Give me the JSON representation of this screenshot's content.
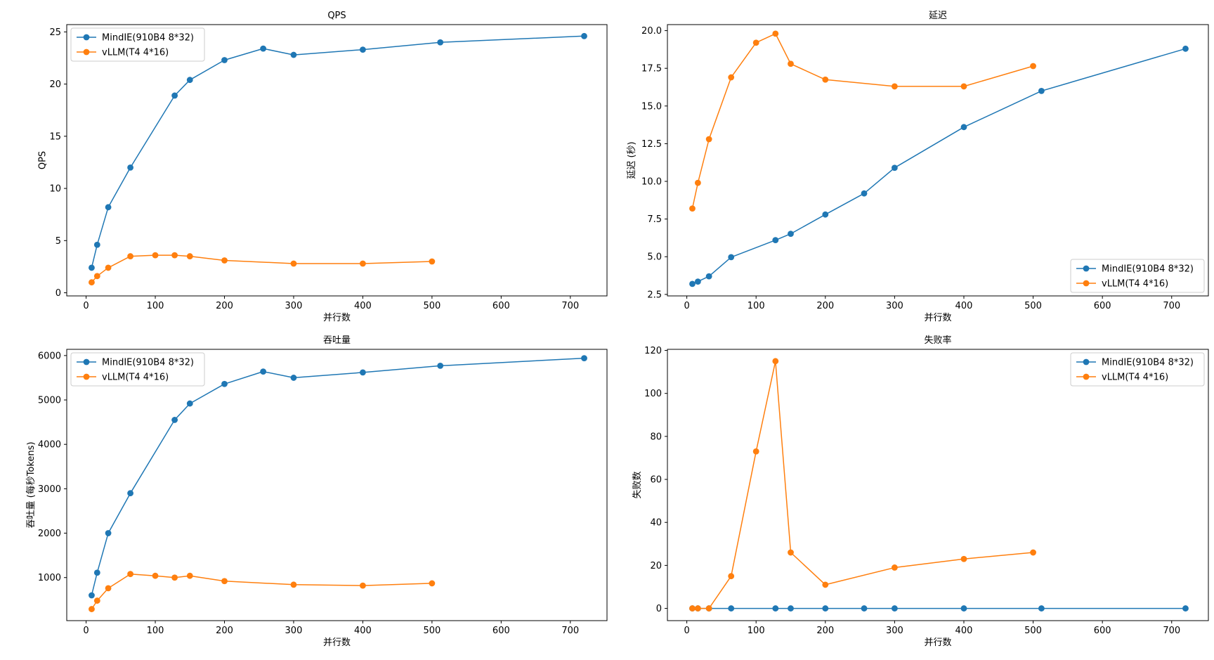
{
  "colors": {
    "series1": "#1f77b4",
    "series2": "#ff7f0e",
    "axis": "#000000",
    "legend_border": "#cccccc"
  },
  "chart_data": [
    {
      "type": "line",
      "title": "QPS",
      "xlabel": "并行数",
      "ylabel": "QPS",
      "xlim": [
        -28,
        753
      ],
      "ylim": [
        -0.3,
        25.7
      ],
      "xticks": [
        0,
        100,
        200,
        300,
        400,
        500,
        600,
        700
      ],
      "yticks": [
        0,
        5,
        10,
        15,
        20,
        25
      ],
      "ytick_labels": [
        "0",
        "5",
        "10",
        "15",
        "20",
        "25"
      ],
      "legend": "upper left",
      "grid": false,
      "series": [
        {
          "name": "MindIE(910B4 8*32)",
          "x": [
            8,
            16,
            32,
            64,
            128,
            150,
            200,
            256,
            300,
            400,
            512,
            720
          ],
          "y": [
            2.4,
            4.6,
            8.2,
            12.0,
            18.9,
            20.4,
            22.3,
            23.4,
            22.8,
            23.3,
            24.0,
            24.6
          ]
        },
        {
          "name": "vLLM(T4 4*16)",
          "x": [
            8,
            16,
            32,
            64,
            100,
            128,
            150,
            200,
            300,
            400,
            500
          ],
          "y": [
            1.0,
            1.6,
            2.4,
            3.5,
            3.6,
            3.6,
            3.5,
            3.1,
            2.8,
            2.8,
            3.0
          ]
        }
      ]
    },
    {
      "type": "line",
      "title": "延迟",
      "xlabel": "并行数",
      "ylabel": "延迟 (秒)",
      "xlim": [
        -28,
        753
      ],
      "ylim": [
        2.4,
        20.4
      ],
      "xticks": [
        0,
        100,
        200,
        300,
        400,
        500,
        600,
        700
      ],
      "yticks": [
        2.5,
        5.0,
        7.5,
        10.0,
        12.5,
        15.0,
        17.5,
        20.0
      ],
      "ytick_labels": [
        "2.5",
        "5.0",
        "7.5",
        "10.0",
        "12.5",
        "15.0",
        "17.5",
        "20.0"
      ],
      "legend": "lower right",
      "grid": false,
      "series": [
        {
          "name": "MindIE(910B4 8*32)",
          "x": [
            8,
            16,
            32,
            64,
            128,
            150,
            200,
            256,
            300,
            400,
            512,
            720
          ],
          "y": [
            3.2,
            3.35,
            3.7,
            4.97,
            6.1,
            6.52,
            7.8,
            9.2,
            10.9,
            13.6,
            16.0,
            18.8
          ]
        },
        {
          "name": "vLLM(T4 4*16)",
          "x": [
            8,
            16,
            32,
            64,
            100,
            128,
            150,
            200,
            300,
            400,
            500
          ],
          "y": [
            8.2,
            9.9,
            12.8,
            16.9,
            19.2,
            19.8,
            17.8,
            16.75,
            16.3,
            16.3,
            17.65
          ]
        }
      ]
    },
    {
      "type": "line",
      "title": "吞吐量",
      "xlabel": "并行数",
      "ylabel": "吞吐量 (每秒Tokens)",
      "xlim": [
        -28,
        753
      ],
      "ylim": [
        30,
        6140
      ],
      "xticks": [
        0,
        100,
        200,
        300,
        400,
        500,
        600,
        700
      ],
      "yticks": [
        1000,
        2000,
        3000,
        4000,
        5000,
        6000
      ],
      "ytick_labels": [
        "1000",
        "2000",
        "3000",
        "4000",
        "5000",
        "6000"
      ],
      "legend": "upper left",
      "grid": false,
      "series": [
        {
          "name": "MindIE(910B4 8*32)",
          "x": [
            8,
            16,
            32,
            64,
            128,
            150,
            200,
            256,
            300,
            400,
            512,
            720
          ],
          "y": [
            600,
            1110,
            2000,
            2900,
            4550,
            4920,
            5360,
            5640,
            5500,
            5620,
            5770,
            5940
          ]
        },
        {
          "name": "vLLM(T4 4*16)",
          "x": [
            8,
            16,
            32,
            64,
            100,
            128,
            150,
            200,
            300,
            400,
            500
          ],
          "y": [
            290,
            480,
            760,
            1080,
            1040,
            1000,
            1040,
            920,
            840,
            820,
            870
          ]
        }
      ]
    },
    {
      "type": "line",
      "title": "失败率",
      "xlabel": "并行数",
      "ylabel": "失败数",
      "xlim": [
        -28,
        753
      ],
      "ylim": [
        -5.7,
        120.5
      ],
      "xticks": [
        0,
        100,
        200,
        300,
        400,
        500,
        600,
        700
      ],
      "yticks": [
        0,
        20,
        40,
        60,
        80,
        100,
        120
      ],
      "ytick_labels": [
        "0",
        "20",
        "40",
        "60",
        "80",
        "100",
        "120"
      ],
      "legend": "upper right",
      "grid": false,
      "series": [
        {
          "name": "MindIE(910B4 8*32)",
          "x": [
            8,
            16,
            32,
            64,
            128,
            150,
            200,
            256,
            300,
            400,
            512,
            720
          ],
          "y": [
            0,
            0,
            0,
            0,
            0,
            0,
            0,
            0,
            0,
            0,
            0,
            0
          ]
        },
        {
          "name": "vLLM(T4 4*16)",
          "x": [
            8,
            16,
            32,
            64,
            100,
            128,
            150,
            200,
            300,
            400,
            500
          ],
          "y": [
            0,
            0,
            0,
            15,
            73,
            115,
            26,
            11,
            19,
            23,
            26
          ]
        }
      ]
    }
  ]
}
